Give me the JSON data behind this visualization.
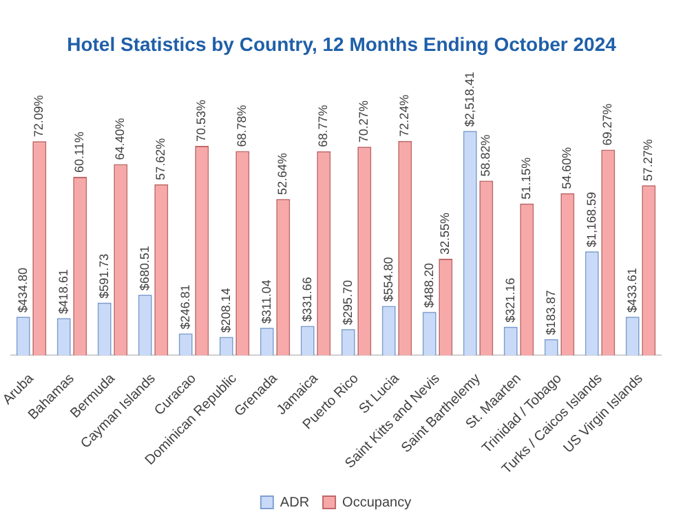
{
  "chart_data": {
    "type": "bar",
    "title": "Hotel Statistics by Country, 12 Months Ending October 2024",
    "categories": [
      "Aruba",
      "Bahamas",
      "Bermuda",
      "Cayman Islands",
      "Curacao",
      "Dominican Republic",
      "Grenada",
      "Jamaica",
      "Puerto Rico",
      "St Lucia",
      "Saint Kitts and Nevis",
      "Saint Barthelemy",
      "St. Maarten",
      "Trinidad / Tobago",
      "Turks / Caicos Islands",
      "US Virgin Islands"
    ],
    "series": [
      {
        "name": "ADR",
        "color": "#c9daf8",
        "axis": "y2",
        "values": [
          434.8,
          418.61,
          591.73,
          680.51,
          246.81,
          208.14,
          311.04,
          331.66,
          295.7,
          554.8,
          488.2,
          2518.41,
          321.16,
          183.87,
          1168.59,
          433.61
        ],
        "value_labels": [
          "$434.80",
          "$418.61",
          "$591.73",
          "$680.51",
          "$246.81",
          "$208.14",
          "$311.04",
          "$331.66",
          "$295.70",
          "$554.80",
          "$488.20",
          "$2,518.41",
          "$321.16",
          "$183.87",
          "$1,168.59",
          "$433.61"
        ]
      },
      {
        "name": "Occupancy",
        "color": "#f7a8a8",
        "values": [
          72.09,
          60.11,
          64.4,
          57.62,
          70.53,
          68.78,
          52.64,
          68.77,
          70.27,
          72.24,
          32.55,
          58.82,
          51.15,
          54.6,
          69.27,
          57.27
        ],
        "value_labels": [
          "72.09%",
          "60.11%",
          "64.40%",
          "57.62%",
          "70.53%",
          "68.78%",
          "52.64%",
          "68.77%",
          "70.27%",
          "72.24%",
          "32.55%",
          "58.82%",
          "51.15%",
          "54.60%",
          "69.27%",
          "57.27%"
        ]
      }
    ],
    "legend": "bottom",
    "tick_labels": "x"
  }
}
